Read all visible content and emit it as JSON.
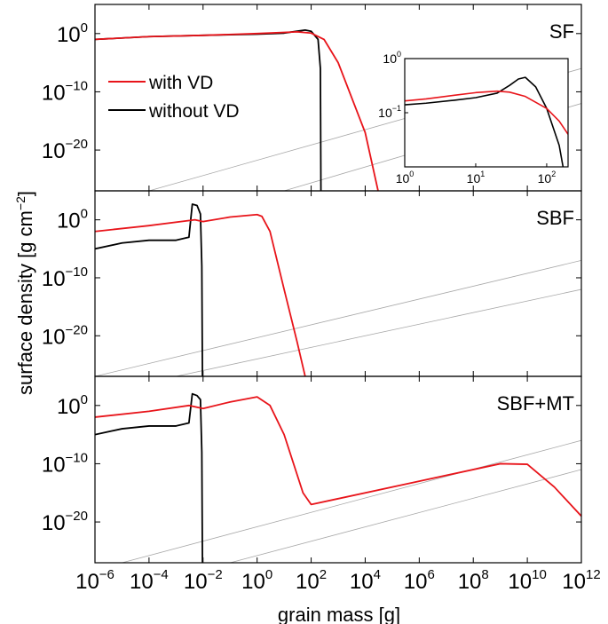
{
  "figure": {
    "xlabel": "grain mass [g]",
    "ylabel_main": "surface density [g cm",
    "ylabel_sup": "−2",
    "ylabel_end": "]"
  },
  "colors": {
    "with_vd": "#e8141a",
    "without_vd": "#000000",
    "reference_lines": "#a8a8a8"
  },
  "legend": [
    {
      "label": "with VD",
      "color": "#e8141a"
    },
    {
      "label": "without VD",
      "color": "#000000"
    }
  ],
  "chart_data": [
    {
      "type": "line",
      "panel": "SF",
      "x_scale": "log",
      "y_scale": "log",
      "xlim": [
        1e-06,
        1000000000000.0
      ],
      "ylim": [
        1e-27,
        100000.0
      ],
      "x_ticks": [
        "10^-6",
        "10^-4",
        "10^-2",
        "10^0",
        "10^2",
        "10^4",
        "10^6",
        "10^8",
        "10^10",
        "10^12"
      ],
      "y_ticks": [
        "10^0",
        "10^-10",
        "10^-20"
      ],
      "series": [
        {
          "name": "with VD",
          "points": [
            [
              1e-06,
              0.1
            ],
            [
              0.0001,
              0.3
            ],
            [
              0.01,
              0.5
            ],
            [
              1,
              1
            ],
            [
              10,
              1.6
            ],
            [
              30,
              2
            ],
            [
              100,
              1.2
            ],
            [
              300,
              0.1
            ],
            [
              1000,
              1e-05
            ],
            [
              10000.0,
              1e-17
            ],
            [
              30000.0,
              1e-27
            ]
          ]
        },
        {
          "name": "without VD",
          "points": [
            [
              1e-06,
              0.1
            ],
            [
              0.0001,
              0.3
            ],
            [
              0.01,
              0.5
            ],
            [
              1,
              0.8
            ],
            [
              10,
              1.2
            ],
            [
              30,
              2.5
            ],
            [
              60,
              4
            ],
            [
              100,
              2.5
            ],
            [
              180,
              0.1
            ],
            [
              220,
              1e-06
            ],
            [
              230,
              1e-27
            ]
          ]
        }
      ],
      "reference_lines": [
        {
          "points": [
            [
              0.0001,
              1e-27
            ],
            [
              1000000000000.0,
              1e-06
            ]
          ]
        },
        {
          "points": [
            [
              10.0,
              1e-27
            ],
            [
              1000000000000.0,
              1e-12
            ]
          ]
        }
      ]
    },
    {
      "type": "line",
      "panel": "inset",
      "x_scale": "log",
      "y_scale": "log",
      "xlim": [
        1,
        200
      ],
      "ylim": [
        0.01,
        1
      ],
      "x_ticks": [
        "10^0",
        "10^1",
        "10^2"
      ],
      "y_ticks": [
        "10^0",
        "10^-1"
      ],
      "series": [
        {
          "name": "with VD",
          "points": [
            [
              1,
              0.165
            ],
            [
              2,
              0.18
            ],
            [
              5,
              0.21
            ],
            [
              10,
              0.235
            ],
            [
              20,
              0.25
            ],
            [
              30,
              0.24
            ],
            [
              50,
              0.2
            ],
            [
              100,
              0.12
            ],
            [
              150,
              0.07
            ],
            [
              200,
              0.04
            ]
          ]
        },
        {
          "name": "without VD",
          "points": [
            [
              1,
              0.14
            ],
            [
              2,
              0.15
            ],
            [
              5,
              0.17
            ],
            [
              10,
              0.19
            ],
            [
              20,
              0.23
            ],
            [
              30,
              0.32
            ],
            [
              40,
              0.42
            ],
            [
              50,
              0.45
            ],
            [
              70,
              0.3
            ],
            [
              100,
              0.12
            ],
            [
              150,
              0.025
            ],
            [
              170,
              0.01
            ]
          ]
        }
      ]
    },
    {
      "type": "line",
      "panel": "SBF",
      "x_scale": "log",
      "y_scale": "log",
      "xlim": [
        1e-06,
        1000000000000.0
      ],
      "ylim": [
        1e-27,
        100000.0
      ],
      "x_ticks": [
        "10^-6",
        "10^-4",
        "10^-2",
        "10^0",
        "10^2",
        "10^4",
        "10^6",
        "10^8",
        "10^10",
        "10^12"
      ],
      "y_ticks": [
        "10^0",
        "10^-10",
        "10^-20"
      ],
      "series": [
        {
          "name": "with VD",
          "points": [
            [
              1e-06,
              0.01
            ],
            [
              0.0001,
              0.1
            ],
            [
              0.005,
              1
            ],
            [
              0.01,
              0.5
            ],
            [
              0.1,
              3
            ],
            [
              1,
              8
            ],
            [
              1.5,
              4
            ],
            [
              3,
              0.01
            ],
            [
              10,
              1e-12
            ],
            [
              30,
              1e-21
            ],
            [
              60,
              1e-27
            ]
          ]
        },
        {
          "name": "without VD",
          "points": [
            [
              1e-06,
              1e-05
            ],
            [
              1e-05,
              0.0001
            ],
            [
              0.0001,
              0.0003
            ],
            [
              0.001,
              0.0003
            ],
            [
              0.003,
              0.001
            ],
            [
              0.004,
              500.0
            ],
            [
              0.006,
              300.0
            ],
            [
              0.008,
              10.0
            ],
            [
              0.009,
              1e-08
            ],
            [
              0.0095,
              1e-27
            ]
          ]
        }
      ],
      "reference_lines": [
        {
          "points": [
            [
              1e-06,
              1e-27
            ],
            [
              1000000000000.0,
              1e-07
            ]
          ]
        },
        {
          "points": [
            [
              0.001,
              1e-27
            ],
            [
              1000000000000.0,
              1e-12
            ]
          ]
        }
      ]
    },
    {
      "type": "line",
      "panel": "SBF+MT",
      "x_scale": "log",
      "y_scale": "log",
      "xlim": [
        1e-06,
        1000000000000.0
      ],
      "ylim": [
        1e-27,
        100000.0
      ],
      "x_ticks": [
        "10^-6",
        "10^-4",
        "10^-2",
        "10^0",
        "10^2",
        "10^4",
        "10^6",
        "10^8",
        "10^10",
        "10^12"
      ],
      "y_ticks": [
        "10^0",
        "10^-10",
        "10^-20"
      ],
      "series": [
        {
          "name": "with VD",
          "points": [
            [
              1e-06,
              0.01
            ],
            [
              0.0001,
              0.1
            ],
            [
              0.003,
              1
            ],
            [
              0.01,
              0.3
            ],
            [
              0.1,
              4
            ],
            [
              1,
              30
            ],
            [
              3,
              1
            ],
            [
              10,
              1e-05
            ],
            [
              50,
              1e-15
            ],
            [
              100,
              1e-17
            ],
            [
              1000.0,
              1e-16
            ],
            [
              1000000.0,
              1e-13
            ],
            [
              1000000000.0,
              1e-10
            ],
            [
              10000000000.0,
              8e-11
            ],
            [
              100000000000.0,
              1e-14
            ],
            [
              1000000000000.0,
              1e-19
            ]
          ]
        },
        {
          "name": "without VD",
          "points": [
            [
              1e-06,
              1e-05
            ],
            [
              1e-05,
              0.0001
            ],
            [
              0.0001,
              0.0003
            ],
            [
              0.001,
              0.0003
            ],
            [
              0.003,
              0.001
            ],
            [
              0.004,
              100.0
            ],
            [
              0.006,
              50.0
            ],
            [
              0.008,
              10.0
            ],
            [
              0.009,
              1e-08
            ],
            [
              0.0095,
              1e-27
            ]
          ]
        }
      ],
      "reference_lines": [
        {
          "points": [
            [
              1e-05,
              1e-27
            ],
            [
              1000000000000.0,
              1e-06
            ]
          ]
        },
        {
          "points": [
            [
              0.1,
              1e-27
            ],
            [
              1000000000000.0,
              1e-11
            ]
          ]
        }
      ]
    }
  ]
}
